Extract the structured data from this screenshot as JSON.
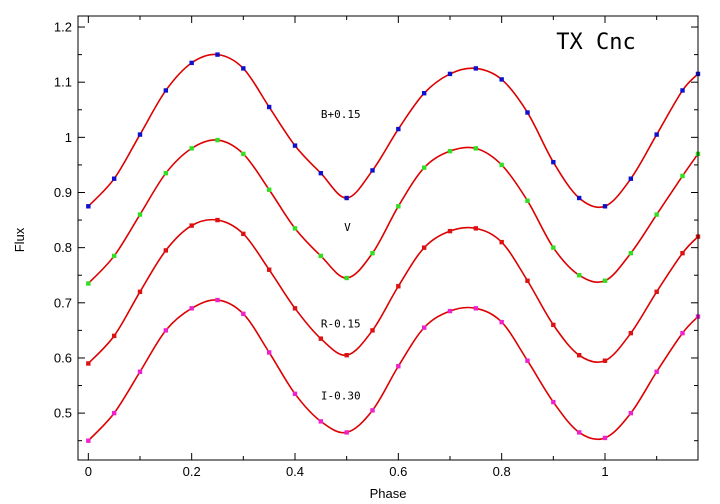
{
  "chart_data": {
    "type": "scatter",
    "title": "TX Cnc",
    "xlabel": "Phase",
    "ylabel": "Flux",
    "xlim": [
      -0.02,
      1.18
    ],
    "ylim": [
      0.415,
      1.22
    ],
    "x_ticks": [
      0,
      0.2,
      0.4,
      0.6,
      0.8,
      1
    ],
    "x_tick_labels": [
      "0",
      "0.2",
      "0.4",
      "0.6",
      "0.8",
      "1"
    ],
    "y_ticks": [
      0.5,
      0.6,
      0.7,
      0.8,
      0.9,
      1,
      1.1,
      1.2
    ],
    "y_tick_labels": [
      "0.5",
      "0.6",
      "0.7",
      "0.8",
      "0.9",
      "1",
      "1.1",
      "1.2"
    ],
    "grid": false,
    "fit_color": "#dd0000",
    "series": [
      {
        "name": "B+0.15",
        "color": "#1010cc",
        "label_at": [
          0.45,
          1.035
        ],
        "x": [
          0,
          0.05,
          0.1,
          0.15,
          0.2,
          0.25,
          0.3,
          0.35,
          0.4,
          0.45,
          0.5,
          0.55,
          0.6,
          0.65,
          0.7,
          0.75,
          0.8,
          0.85,
          0.9,
          0.95,
          1,
          1.05,
          1.1,
          1.15,
          1.18
        ],
        "y": [
          0.875,
          0.925,
          1.005,
          1.085,
          1.135,
          1.15,
          1.125,
          1.055,
          0.985,
          0.935,
          0.89,
          0.94,
          1.015,
          1.08,
          1.115,
          1.125,
          1.105,
          1.045,
          0.955,
          0.89,
          0.875,
          0.925,
          1.005,
          1.085,
          1.115
        ]
      },
      {
        "name": "V",
        "color": "#33dd22",
        "label_at": [
          0.495,
          0.83
        ],
        "x": [
          0,
          0.05,
          0.1,
          0.15,
          0.2,
          0.25,
          0.3,
          0.35,
          0.4,
          0.45,
          0.5,
          0.55,
          0.6,
          0.65,
          0.7,
          0.75,
          0.8,
          0.85,
          0.9,
          0.95,
          1,
          1.05,
          1.1,
          1.15,
          1.18
        ],
        "y": [
          0.735,
          0.785,
          0.86,
          0.935,
          0.98,
          0.995,
          0.97,
          0.905,
          0.835,
          0.785,
          0.745,
          0.79,
          0.875,
          0.945,
          0.975,
          0.98,
          0.95,
          0.885,
          0.8,
          0.75,
          0.74,
          0.79,
          0.86,
          0.93,
          0.97
        ]
      },
      {
        "name": "R-0.15",
        "color": "#dd1111",
        "label_at": [
          0.45,
          0.655
        ],
        "x": [
          0,
          0.05,
          0.1,
          0.15,
          0.2,
          0.25,
          0.3,
          0.35,
          0.4,
          0.45,
          0.5,
          0.55,
          0.6,
          0.65,
          0.7,
          0.75,
          0.8,
          0.85,
          0.9,
          0.95,
          1,
          1.05,
          1.1,
          1.15,
          1.18
        ],
        "y": [
          0.59,
          0.64,
          0.72,
          0.795,
          0.84,
          0.85,
          0.825,
          0.76,
          0.69,
          0.635,
          0.605,
          0.65,
          0.73,
          0.8,
          0.83,
          0.835,
          0.81,
          0.74,
          0.66,
          0.605,
          0.595,
          0.645,
          0.72,
          0.79,
          0.82
        ]
      },
      {
        "name": "I-0.30",
        "color": "#ee22cc",
        "label_at": [
          0.45,
          0.525
        ],
        "x": [
          0,
          0.05,
          0.1,
          0.15,
          0.2,
          0.25,
          0.3,
          0.35,
          0.4,
          0.45,
          0.5,
          0.55,
          0.6,
          0.65,
          0.7,
          0.75,
          0.8,
          0.85,
          0.9,
          0.95,
          1,
          1.05,
          1.1,
          1.15,
          1.18
        ],
        "y": [
          0.45,
          0.5,
          0.575,
          0.65,
          0.69,
          0.705,
          0.68,
          0.61,
          0.535,
          0.485,
          0.465,
          0.505,
          0.585,
          0.655,
          0.685,
          0.69,
          0.665,
          0.595,
          0.52,
          0.465,
          0.455,
          0.5,
          0.575,
          0.645,
          0.675
        ]
      }
    ]
  }
}
